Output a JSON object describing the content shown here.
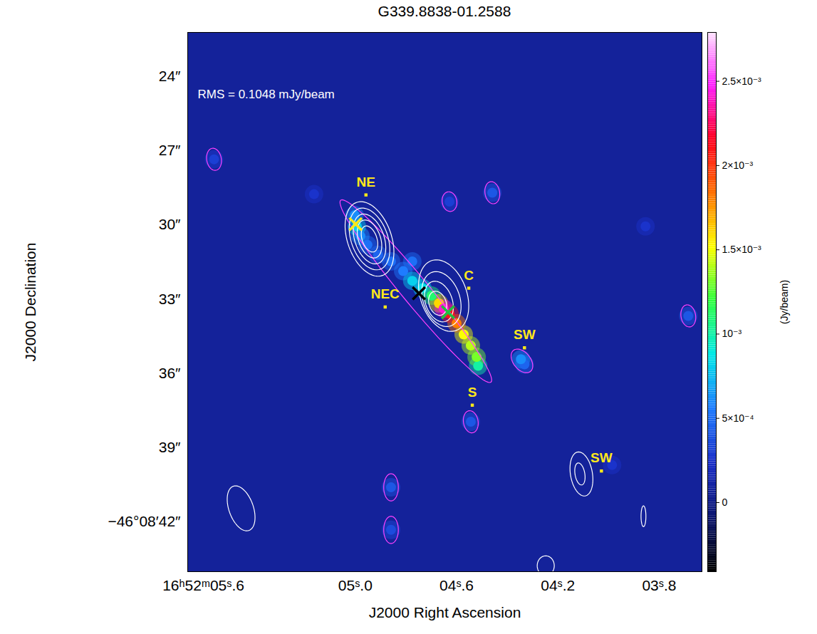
{
  "chart_data": {
    "type": "image",
    "title": "G339.8838-01.2588",
    "x_label": "J2000 Right Ascension",
    "y_label": "J2000 Declination",
    "annotations": [
      "RMS = 0.1048 mJy/beam"
    ],
    "xlim": [
      5.662,
      3.631
    ],
    "ylim": [
      22.22,
      44.02
    ],
    "xticks": [
      {
        "value": 5.6,
        "label": "16ʰ52ᵐ05ˢ.6"
      },
      {
        "value": 5.0,
        "label": "05ˢ.0"
      },
      {
        "value": 4.6,
        "label": "04ˢ.6"
      },
      {
        "value": 4.2,
        "label": "04ˢ.2"
      },
      {
        "value": 3.8,
        "label": "03ˢ.8"
      }
    ],
    "yticks": [
      {
        "value": 24,
        "label": "24″"
      },
      {
        "value": 27,
        "label": "27″"
      },
      {
        "value": 30,
        "label": "30″"
      },
      {
        "value": 33,
        "label": "33″"
      },
      {
        "value": 36,
        "label": "36″"
      },
      {
        "value": 39,
        "label": "39″"
      },
      {
        "value": 42,
        "label": "−46°08′42″"
      }
    ],
    "emission": {
      "ra": [
        5.003,
        4.994,
        4.98,
        4.952,
        4.91,
        4.859,
        4.811,
        4.775,
        4.735,
        4.699,
        4.67,
        4.651,
        4.628,
        4.6,
        4.572,
        4.544,
        4.521,
        4.515,
        4.775,
        4.346,
        4.332,
        4.459,
        3.685,
        4.544,
        4.859,
        4.859,
        5.558,
        5.163,
        4.628,
        3.986,
        3.854
      ],
      "dec": [
        29.61,
        30.06,
        30.45,
        30.81,
        31.21,
        31.48,
        31.87,
        32.26,
        32.56,
        32.86,
        33.17,
        33.38,
        33.59,
        33.98,
        34.43,
        34.88,
        35.34,
        35.7,
        31.48,
        35.43,
        35.64,
        28.7,
        33.68,
        37.96,
        40.61,
        42.33,
        27.35,
        28.76,
        29.06,
        39.71,
        30.06
      ],
      "flux": [
        0.0006,
        0.0008,
        0.0006,
        0.0005,
        0.00045,
        0.0005,
        0.00055,
        0.0008,
        0.00085,
        0.0011,
        0.0016,
        0.0024,
        0.0021,
        0.0018,
        0.0015,
        0.0014,
        0.0013,
        0.001,
        0.0005,
        0.0006,
        0.00045,
        0.0004,
        0.0004,
        0.0004,
        0.0004,
        0.00035,
        0.0003,
        0.00025,
        0.0003,
        0.00025,
        0.00025
      ]
    },
    "colorbar": {
      "label": "(Jy/beam)",
      "lim": [
        -0.00041,
        0.00279
      ],
      "ticks": [
        0,
        {
          "value": 0.0005,
          "label": "5×10⁻⁴"
        },
        {
          "value": 0.001,
          "label": "10⁻³"
        },
        {
          "value": 0.0015,
          "label": "1.5×10⁻³"
        },
        {
          "value": 0.002,
          "label": "2×10⁻³"
        },
        {
          "value": 0.0025,
          "label": "2.5×10⁻³"
        }
      ]
    },
    "contours": [
      {
        "color": "#ff40ff",
        "ra": 4.761,
        "dec": 32.68,
        "a": 4.8,
        "b": 0.55,
        "pa": 40
      },
      {
        "color": "#ff40ff",
        "ra": 4.342,
        "dec": 35.5,
        "a": 0.55,
        "b": 0.35,
        "pa": 40
      },
      {
        "color": "#ff40ff",
        "ra": 4.459,
        "dec": 28.7,
        "a": 0.45,
        "b": 0.3,
        "pa": 10
      },
      {
        "color": "#ff40ff",
        "ra": 3.685,
        "dec": 33.68,
        "a": 0.45,
        "b": 0.3,
        "pa": 10
      },
      {
        "color": "#ff40ff",
        "ra": 4.544,
        "dec": 37.96,
        "a": 0.45,
        "b": 0.3,
        "pa": 10
      },
      {
        "color": "#ff40ff",
        "ra": 4.859,
        "dec": 40.61,
        "a": 0.55,
        "b": 0.3,
        "pa": 0
      },
      {
        "color": "#ff40ff",
        "ra": 4.859,
        "dec": 42.33,
        "a": 0.55,
        "b": 0.3,
        "pa": 0
      },
      {
        "color": "#ff40ff",
        "ra": 5.558,
        "dec": 27.35,
        "a": 0.45,
        "b": 0.3,
        "pa": 10
      },
      {
        "color": "#ff40ff",
        "ra": 4.628,
        "dec": 29.06,
        "a": 0.4,
        "b": 0.3,
        "pa": 10
      },
      {
        "color": "white",
        "ra": 4.944,
        "dec": 30.57,
        "a": 1.57,
        "b": 0.9,
        "pa": 20
      },
      {
        "color": "white",
        "ra": 4.944,
        "dec": 30.57,
        "a": 1.3,
        "b": 0.75,
        "pa": 20
      },
      {
        "color": "white",
        "ra": 4.944,
        "dec": 30.57,
        "a": 1.05,
        "b": 0.6,
        "pa": 20
      },
      {
        "color": "white",
        "ra": 4.944,
        "dec": 30.57,
        "a": 0.8,
        "b": 0.45,
        "pa": 20
      },
      {
        "color": "white",
        "ra": 4.944,
        "dec": 30.57,
        "a": 0.55,
        "b": 0.3,
        "pa": 20
      },
      {
        "color": "white",
        "ra": 4.651,
        "dec": 32.86,
        "a": 1.5,
        "b": 0.95,
        "pa": 20
      },
      {
        "color": "white",
        "ra": 4.66,
        "dec": 33.0,
        "a": 1.15,
        "b": 0.75,
        "pa": 20
      },
      {
        "color": "white",
        "ra": 4.67,
        "dec": 33.1,
        "a": 0.85,
        "b": 0.55,
        "pa": 20
      },
      {
        "color": "white",
        "ra": 4.675,
        "dec": 33.17,
        "a": 0.5,
        "b": 0.35,
        "pa": 20
      },
      {
        "color": "white",
        "ra": 4.107,
        "dec": 40.07,
        "a": 0.9,
        "b": 0.45,
        "pa": 10
      },
      {
        "color": "white",
        "ra": 4.113,
        "dec": 40.07,
        "a": 0.45,
        "b": 0.2,
        "pa": 10
      },
      {
        "color": "white",
        "ra": 5.451,
        "dec": 41.46,
        "a": 0.95,
        "b": 0.5,
        "pa": 20
      },
      {
        "color": "white",
        "ra": 4.248,
        "dec": 43.78,
        "a": 0.4,
        "b": 0.35,
        "pa": 0
      },
      {
        "color": "white",
        "ra": 3.862,
        "dec": 41.78,
        "a": 0.42,
        "b": 0.1,
        "pa": 0
      }
    ],
    "markers": [
      {
        "ra": 4.999,
        "dec": 29.97,
        "color": "#ffe81a",
        "marker": "times"
      },
      {
        "ra": 4.749,
        "dec": 32.77,
        "color": "#000000",
        "marker": "times"
      },
      {
        "ra": 4.634,
        "dec": 33.53,
        "color": "#20c040",
        "marker": "times"
      }
    ],
    "sources": [
      {
        "label": "NE",
        "ra": 4.958,
        "dec": 28.79
      },
      {
        "label": "NEC",
        "ra": 4.882,
        "dec": 33.32
      },
      {
        "label": "C",
        "ra": 4.552,
        "dec": 32.56
      },
      {
        "label": "SW",
        "ra": 4.332,
        "dec": 34.97
      },
      {
        "label": "S",
        "ra": 4.538,
        "dec": 37.29
      },
      {
        "label": "SW",
        "ra": 4.028,
        "dec": 39.95
      }
    ]
  }
}
